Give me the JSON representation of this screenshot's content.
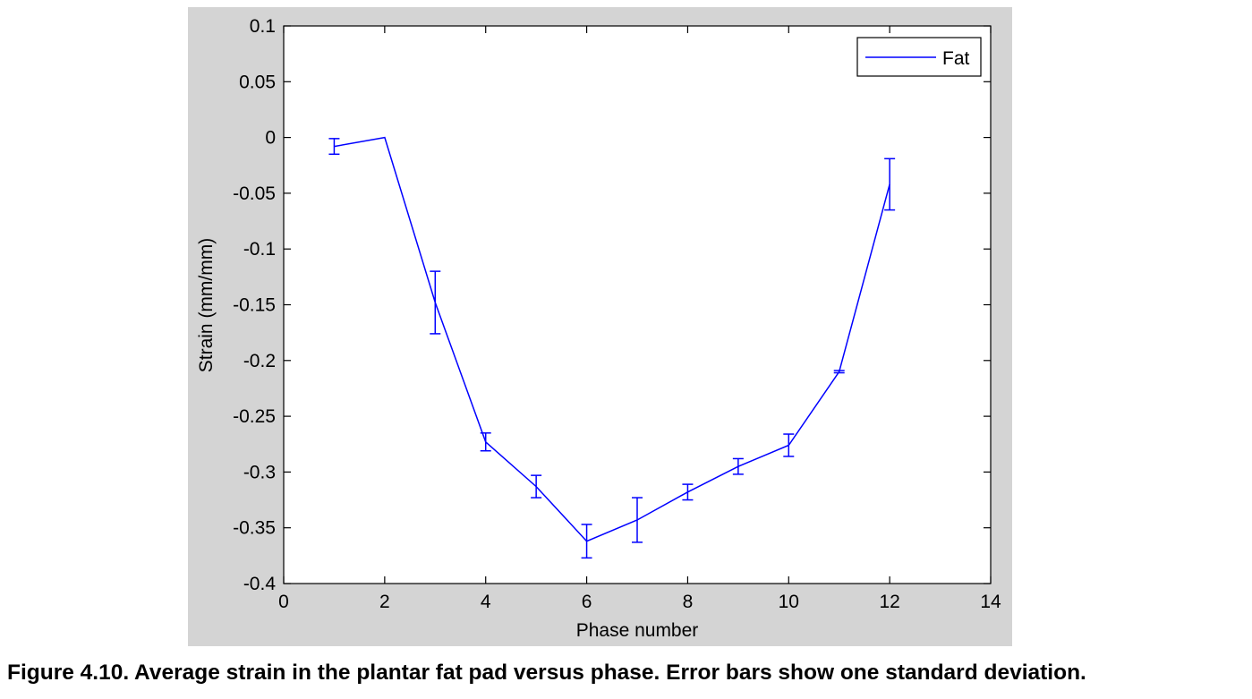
{
  "caption": "Figure 4.10. Average strain in the plantar fat pad versus phase.  Error bars show one standard deviation.",
  "chart_data": {
    "type": "line",
    "xlabel": "Phase number",
    "ylabel": "Strain (mm/mm)",
    "xlim": [
      0,
      14
    ],
    "ylim": [
      -0.4,
      0.1
    ],
    "xticks": [
      0,
      2,
      4,
      6,
      8,
      10,
      12,
      14
    ],
    "xtick_labels": [
      "0",
      "2",
      "4",
      "6",
      "8",
      "10",
      "12",
      "14"
    ],
    "yticks": [
      0.1,
      0.05,
      0,
      -0.05,
      -0.1,
      -0.15,
      -0.2,
      -0.25,
      -0.3,
      -0.35,
      -0.4
    ],
    "ytick_labels": [
      "0.1",
      "0.05",
      "0",
      "-0.05",
      "-0.1",
      "-0.15",
      "-0.2",
      "-0.25",
      "-0.3",
      "-0.35",
      "-0.4"
    ],
    "grid": false,
    "legend_position": "top-right",
    "series": [
      {
        "name": "Fat",
        "color": "#0000ff",
        "x": [
          1,
          2,
          3,
          4,
          5,
          6,
          7,
          8,
          9,
          10,
          11,
          12
        ],
        "y": [
          -0.008,
          0.0,
          -0.148,
          -0.273,
          -0.313,
          -0.362,
          -0.343,
          -0.318,
          -0.295,
          -0.276,
          -0.21,
          -0.042
        ],
        "error": [
          0.007,
          0.0,
          0.028,
          0.008,
          0.01,
          0.015,
          0.02,
          0.007,
          0.007,
          0.01,
          0.001,
          0.023
        ]
      }
    ]
  }
}
